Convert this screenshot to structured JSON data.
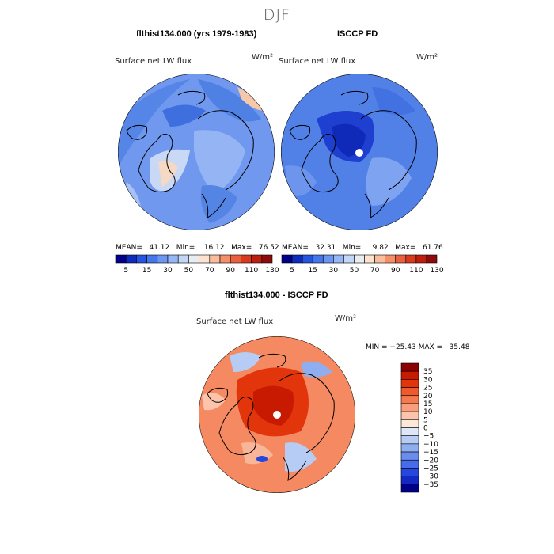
{
  "figure_title": "DJF",
  "chart_data": [
    {
      "type": "heatmap",
      "title": "flthist134.000 (yrs 1979-1983)",
      "subtitle": "Surface net LW flux",
      "units": "W/m²",
      "projection": "north polar stereographic",
      "stats": {
        "mean": 41.12,
        "min": 16.12,
        "max": 76.52
      },
      "stats_text": "MEAN=   41.12   Min=    16.12   Max=   76.52",
      "colorbar_levels": [
        0,
        5,
        10,
        15,
        20,
        30,
        40,
        50,
        60,
        70,
        80,
        90,
        100,
        110,
        120,
        130
      ],
      "colorbar_labels": [
        "5",
        "15",
        "30",
        "50",
        "70",
        "90",
        "110",
        "130"
      ],
      "colorbar_colors": [
        "#00008b",
        "#0d2bbd",
        "#2554e0",
        "#4476ec",
        "#6b96f2",
        "#96b7f5",
        "#c3d6f5",
        "#e8edf2",
        "#fde3cf",
        "#f9bd9c",
        "#f48f6a",
        "#ea5f3e",
        "#d93a1e",
        "#bd1e0e",
        "#8c0b0b"
      ],
      "field_description": "mostly 20–50 W/m²; lowest over Greenland interior and Siberia, higher over N Atlantic"
    },
    {
      "type": "heatmap",
      "title": "ISCCP FD",
      "subtitle": "Surface net LW flux",
      "units": "W/m²",
      "projection": "north polar stereographic",
      "stats": {
        "mean": 32.31,
        "min": 9.82,
        "max": 61.76
      },
      "stats_text": "MEAN=   32.31   Min=     9.82   Max=   61.76",
      "colorbar_levels": [
        0,
        5,
        10,
        15,
        20,
        30,
        40,
        50,
        60,
        70,
        80,
        90,
        100,
        110,
        120,
        130
      ],
      "colorbar_labels": [
        "5",
        "15",
        "30",
        "50",
        "70",
        "90",
        "110",
        "130"
      ],
      "colorbar_colors": [
        "#00008b",
        "#0d2bbd",
        "#2554e0",
        "#4476ec",
        "#6b96f2",
        "#96b7f5",
        "#c3d6f5",
        "#e8edf2",
        "#fde3cf",
        "#f9bd9c",
        "#f48f6a",
        "#ea5f3e",
        "#d93a1e",
        "#bd1e0e",
        "#8c0b0b"
      ],
      "field_description": "mostly 10–40 W/m²; lowest over Arctic Ocean (pole masked)"
    },
    {
      "type": "heatmap",
      "title": "flthist134.000 - ISCCP FD",
      "subtitle": "Surface net LW flux",
      "units": "W/m²",
      "projection": "north polar stereographic",
      "stats": {
        "min": -25.43,
        "max": 35.48
      },
      "stats_text": "MIN = −25.43 MAX =   35.48",
      "colorbar_levels": [
        -40,
        -35,
        -30,
        -25,
        -20,
        -15,
        -10,
        -5,
        0,
        5,
        10,
        15,
        20,
        25,
        30,
        35,
        40
      ],
      "colorbar_labels": [
        "35",
        "30",
        "25",
        "20",
        "15",
        "10",
        "5",
        "0",
        "−5",
        "−10",
        "−15",
        "−20",
        "−25",
        "−30",
        "−35"
      ],
      "colorbar_colors": [
        "#8b0000",
        "#c81a00",
        "#e2350c",
        "#ee5a2c",
        "#f4794f",
        "#f89e7d",
        "#fcc5ab",
        "#fde8d8",
        "#dde7f7",
        "#b6ccf4",
        "#8eaef0",
        "#6a8ded",
        "#476ceb",
        "#2448df",
        "#1329c2",
        "#00008b"
      ],
      "field_description": "positive (model > obs) over most of domain, strongest over Arctic Ocean; negative over parts of Greenland and N Atlantic"
    }
  ]
}
